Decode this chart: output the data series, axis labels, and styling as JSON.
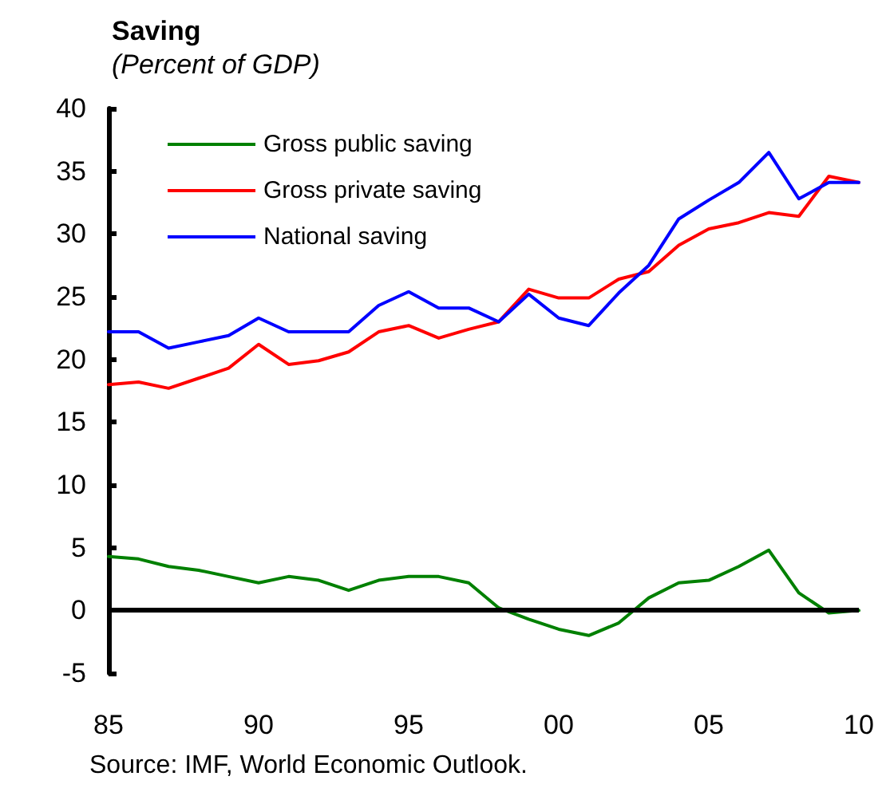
{
  "chart_data": {
    "type": "line",
    "title": "Saving",
    "subtitle": "(Percent of GDP)",
    "x": [
      1985,
      1986,
      1987,
      1988,
      1989,
      1990,
      1991,
      1992,
      1993,
      1994,
      1995,
      1996,
      1997,
      1998,
      1999,
      2000,
      2001,
      2002,
      2003,
      2004,
      2005,
      2006,
      2007,
      2008,
      2009,
      2010
    ],
    "series": [
      {
        "name": "Gross public saving",
        "color": "#008000",
        "values": [
          4.3,
          4.1,
          3.5,
          3.2,
          2.7,
          2.2,
          2.7,
          2.4,
          1.6,
          2.4,
          2.7,
          2.7,
          2.2,
          0.2,
          -0.7,
          -1.5,
          -2.0,
          -1.0,
          1.0,
          2.2,
          2.4,
          3.5,
          4.8,
          1.4,
          -0.2,
          0.0
        ]
      },
      {
        "name": "Gross private saving",
        "color": "#ff0000",
        "values": [
          18.0,
          18.2,
          17.7,
          18.5,
          19.3,
          21.2,
          19.6,
          19.9,
          20.6,
          22.2,
          22.7,
          21.7,
          22.4,
          23.0,
          25.6,
          24.9,
          24.9,
          26.4,
          27.0,
          29.1,
          30.4,
          30.9,
          31.7,
          31.4,
          34.6,
          34.1
        ]
      },
      {
        "name": "National saving",
        "color": "#0000ff",
        "values": [
          22.2,
          22.2,
          20.9,
          21.4,
          21.9,
          23.3,
          22.2,
          22.2,
          22.2,
          24.3,
          25.4,
          24.1,
          24.1,
          23.0,
          25.2,
          23.3,
          22.7,
          25.3,
          27.5,
          31.2,
          32.7,
          34.1,
          36.5,
          32.8,
          34.1,
          34.1
        ]
      }
    ],
    "xlim": [
      1985,
      2010
    ],
    "xticks": [
      {
        "value": 1985,
        "label": "85"
      },
      {
        "value": 1990,
        "label": "90"
      },
      {
        "value": 1995,
        "label": "95"
      },
      {
        "value": 2000,
        "label": "00"
      },
      {
        "value": 2005,
        "label": "05"
      },
      {
        "value": 2010,
        "label": "10"
      }
    ],
    "ylim": [
      -5,
      40
    ],
    "yticks": [
      -5,
      0,
      5,
      10,
      15,
      20,
      25,
      30,
      35,
      40
    ],
    "ref_lines": [
      {
        "axis": "y",
        "value": 0,
        "color": "#000000",
        "line_style": "solid"
      }
    ],
    "legend": "top left",
    "marker": "none",
    "line_style": "solid",
    "annotations": [
      "Source: IMF, World Economic Outlook."
    ]
  }
}
